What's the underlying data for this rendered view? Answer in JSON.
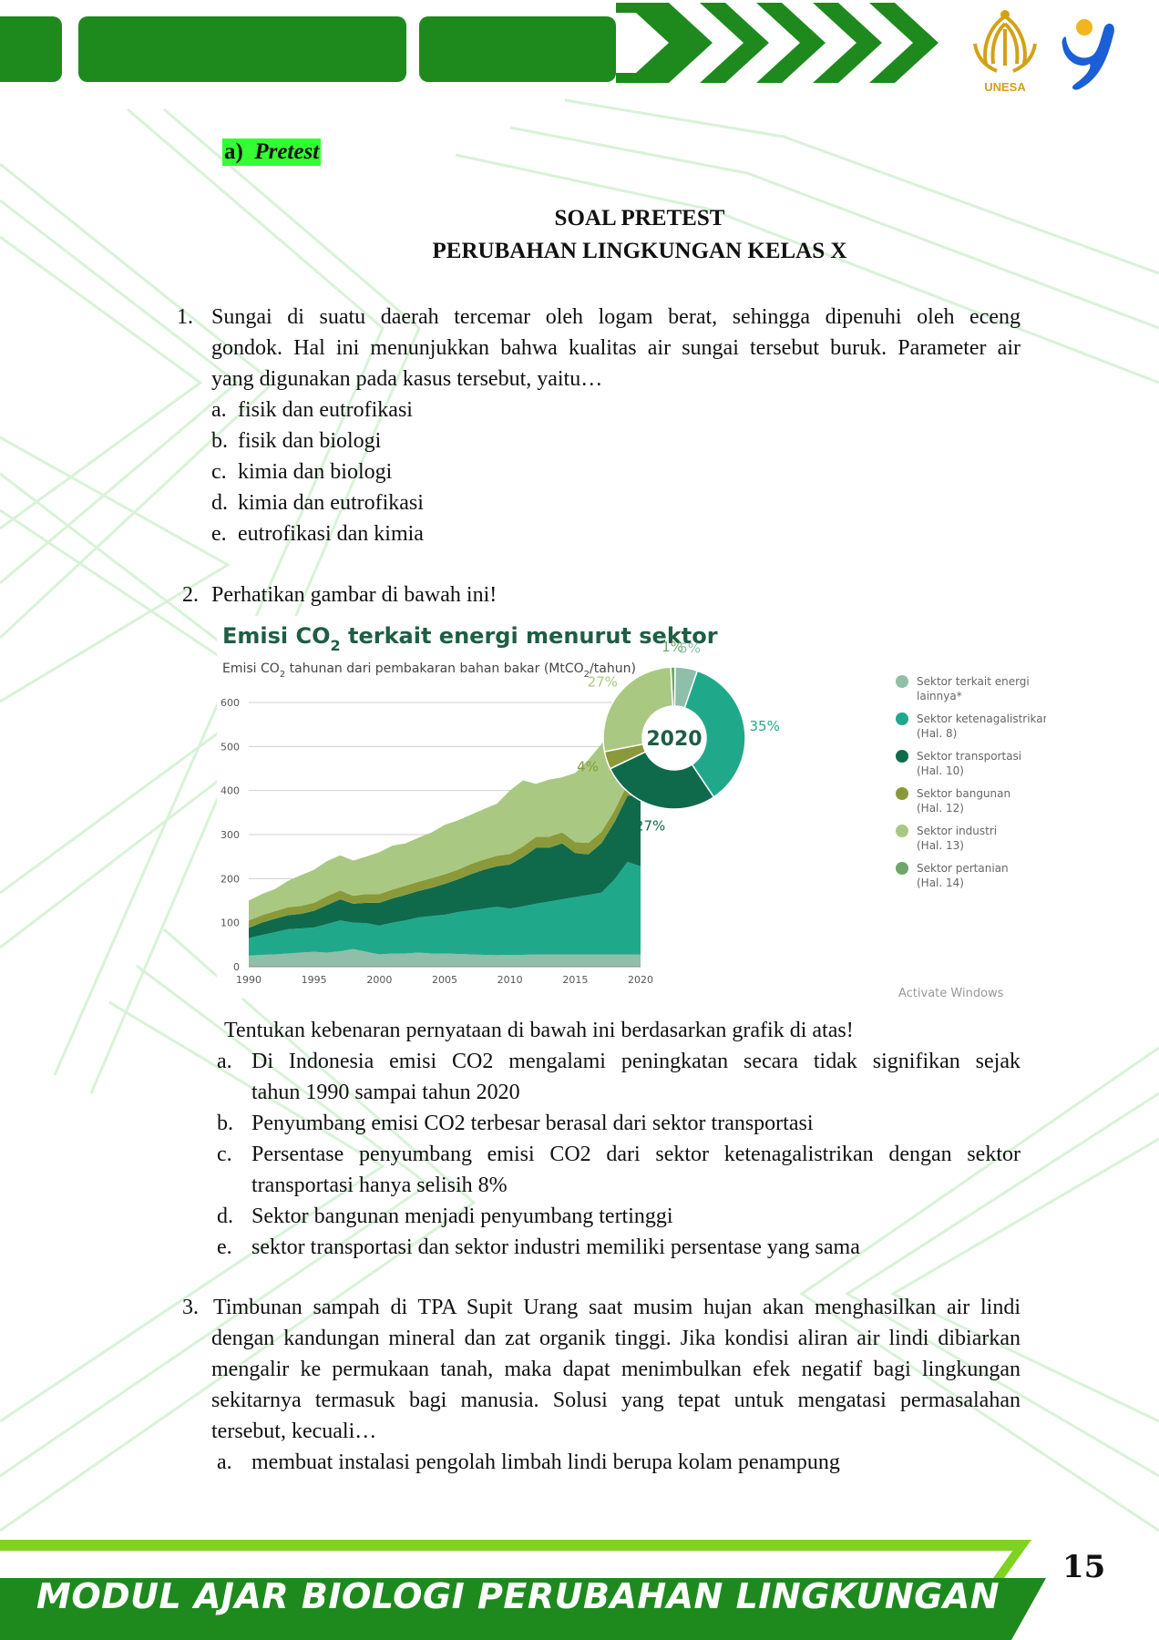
{
  "header": {
    "brand_color": "#1e8a1e",
    "logo_text": "UNESA",
    "logo_color": "#d4a017",
    "mascot_color": "#1a5fd6"
  },
  "section": {
    "letter": "a)",
    "label": "Pretest",
    "highlight_color": "#33ff33"
  },
  "title": {
    "line1": "SOAL PRETEST",
    "line2": "PERUBAHAN LINGKUNGAN KELAS X"
  },
  "q1": {
    "number": "1.",
    "line1": "Sungai di suatu daerah tercemar oleh logam berat, sehingga dipenuhi oleh eceng",
    "line2": "gondok. Hal ini menunjukkan bahwa kualitas air sungai tersebut buruk. Parameter air",
    "line3": "yang digunakan pada kasus tersebut, yaitu…",
    "options": [
      {
        "letter": "a.",
        "text": "fisik dan eutrofikasi"
      },
      {
        "letter": "b.",
        "text": "fisik dan biologi"
      },
      {
        "letter": "c.",
        "text": "kimia dan biologi"
      },
      {
        "letter": "d.",
        "text": "kimia dan eutrofikasi"
      },
      {
        "letter": "e.",
        "text": "eutrofikasi dan kimia"
      }
    ]
  },
  "q2": {
    "number": "2.",
    "prompt": "Perhatikan gambar di bawah ini!",
    "instruction": "Tentukan kebenaran pernyataan di bawah ini berdasarkan grafik di atas!",
    "options": [
      {
        "letter": "a.",
        "line1": "Di Indonesia emisi CO2 mengalami peningkatan secara tidak signifikan sejak",
        "line2": "tahun 1990 sampai tahun 2020"
      },
      {
        "letter": "b.",
        "line1": "Penyumbang emisi CO2 terbesar berasal dari sektor transportasi",
        "line2": ""
      },
      {
        "letter": "c.",
        "line1": "Persentase penyumbang emisi CO2 dari sektor ketenagalistrikan dengan sektor",
        "line2": "transportasi hanya selisih 8%"
      },
      {
        "letter": "d.",
        "line1": "Sektor bangunan menjadi penyumbang tertinggi",
        "line2": ""
      },
      {
        "letter": "e.",
        "line1": "sektor transportasi dan sektor industri memiliki persentase yang sama",
        "line2": ""
      }
    ]
  },
  "q3": {
    "number": "3.",
    "line1": "Timbunan sampah di TPA Supit Urang saat musim hujan akan menghasilkan air lindi",
    "line2": "dengan kandungan mineral dan zat organik tinggi. Jika kondisi aliran air lindi dibiarkan",
    "line3": "mengalir ke permukaan tanah, maka dapat menimbulkan efek negatif bagi lingkungan",
    "line4": "sekitarnya termasuk bagi manusia. Solusi yang tepat untuk mengatasi permasalahan",
    "line5": "tersebut, kecuali…",
    "options": [
      {
        "letter": "a.",
        "text": "membuat instalasi pengolah limbah lindi berupa kolam penampung"
      }
    ]
  },
  "chart_title": {
    "main": "Emisi CO",
    "main_sub": "2",
    "main_rest": " terkait energi menurut sektor",
    "subtitle": "Emisi CO",
    "subtitle_sub": "2",
    "subtitle_mid": " tahunan dari pembakaran bahan bakar (MtCO",
    "subtitle_sub2": "2",
    "subtitle_end": "/tahun)"
  },
  "chart_data": [
    {
      "type": "area",
      "stacked": true,
      "x": [
        1990,
        1991,
        1992,
        1993,
        1994,
        1995,
        1996,
        1997,
        1998,
        1999,
        2000,
        2001,
        2002,
        2003,
        2004,
        2005,
        2006,
        2007,
        2008,
        2009,
        2010,
        2011,
        2012,
        2013,
        2014,
        2015,
        2016,
        2017,
        2018,
        2019,
        2020
      ],
      "xticks": [
        1990,
        1995,
        2000,
        2005,
        2010,
        2015,
        2020
      ],
      "yticks": [
        0,
        100,
        200,
        300,
        400,
        500,
        600
      ],
      "ylim": [
        0,
        600
      ],
      "series": [
        {
          "name": "Sektor terkait energi lainnya*",
          "color": "#8fbfa8",
          "values": [
            25,
            27,
            28,
            30,
            32,
            34,
            32,
            35,
            40,
            34,
            28,
            30,
            30,
            32,
            30,
            30,
            29,
            28,
            27,
            26,
            27,
            27,
            28,
            28,
            28,
            28,
            28,
            28,
            28,
            28,
            28
          ]
        },
        {
          "name": "Sektor ketenagalistrikan",
          "color": "#1fa98a",
          "values": [
            40,
            45,
            50,
            55,
            55,
            55,
            65,
            70,
            60,
            65,
            65,
            70,
            75,
            80,
            85,
            88,
            95,
            100,
            105,
            110,
            105,
            110,
            115,
            120,
            125,
            130,
            135,
            140,
            170,
            210,
            200
          ]
        },
        {
          "name": "Sektor transportasi",
          "color": "#0f6a4c",
          "values": [
            23,
            28,
            31,
            32,
            33,
            38,
            43,
            48,
            43,
            46,
            52,
            55,
            58,
            60,
            64,
            70,
            74,
            82,
            88,
            92,
            100,
            112,
            127,
            122,
            127,
            100,
            92,
            112,
            130,
            150,
            160
          ]
        },
        {
          "name": "Sektor bangunan",
          "color": "#8a9a3a",
          "values": [
            17,
            17,
            17,
            18,
            18,
            18,
            20,
            20,
            18,
            20,
            20,
            20,
            21,
            21,
            22,
            22,
            22,
            23,
            23,
            24,
            24,
            24,
            25,
            25,
            25,
            25,
            26,
            26,
            26,
            27,
            28
          ]
        },
        {
          "name": "Sektor industri",
          "color": "#a9c982",
          "values": [
            45,
            48,
            50,
            60,
            70,
            75,
            80,
            80,
            80,
            85,
            95,
            100,
            96,
            100,
            104,
            112,
            112,
            112,
            115,
            118,
            144,
            150,
            120,
            130,
            125,
            157,
            189,
            199,
            196,
            165,
            165
          ]
        }
      ]
    },
    {
      "type": "pie",
      "center_label": "2020",
      "slices": [
        {
          "name": "Sektor terkait energi lainnya*",
          "color": "#8fbfa8",
          "value": 5,
          "label": "5%"
        },
        {
          "name": "Sektor ketenagalistrikan",
          "color": "#1fa98a",
          "value": 35,
          "label": "35%"
        },
        {
          "name": "Sektor transportasi",
          "color": "#0f6a4c",
          "value": 27,
          "label": "27%"
        },
        {
          "name": "Sektor bangunan",
          "color": "#8a9a3a",
          "value": 4,
          "label": "4%"
        },
        {
          "name": "Sektor industri",
          "color": "#a9c982",
          "value": 27,
          "label": "27%"
        },
        {
          "name": "Sektor pertanian",
          "color": "#6fa66a",
          "value": 1,
          "label": "1%"
        }
      ]
    }
  ],
  "legend": [
    {
      "line1": "Sektor terkait energi",
      "line2": "lainnya*",
      "color": "#8fbfa8"
    },
    {
      "line1": "Sektor ketenagalistrikan",
      "line2": "(Hal. 8)",
      "color": "#1fa98a"
    },
    {
      "line1": "Sektor transportasi",
      "line2": "(Hal. 10)",
      "color": "#0f6a4c"
    },
    {
      "line1": "Sektor bangunan",
      "line2": "(Hal. 12)",
      "color": "#8a9a3a"
    },
    {
      "line1": "Sektor industri",
      "line2": "(Hal. 13)",
      "color": "#a9c982"
    },
    {
      "line1": "Sektor pertanian",
      "line2": "(Hal. 14)",
      "color": "#6fa66a"
    }
  ],
  "watermark": "Activate Windows",
  "footer": {
    "text": "MODUL AJAR BIOLOGI PERUBAHAN LINGKUNGAN",
    "page_number": "15",
    "band_color": "#1e8a1e",
    "accent_color": "#7ed321"
  }
}
